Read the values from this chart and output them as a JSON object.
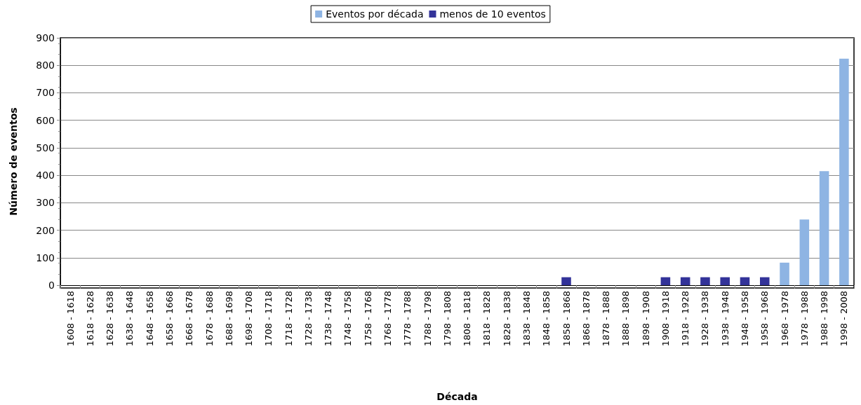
{
  "chart_data": {
    "type": "bar",
    "xlabel": "Década",
    "ylabel": "Número de eventos",
    "categories": [
      "1608 - 1618",
      "1618 - 1628",
      "1628 - 1638",
      "1638 - 1648",
      "1648 - 1658",
      "1658 - 1668",
      "1668 - 1678",
      "1678 - 1688",
      "1688 - 1698",
      "1698 - 1708",
      "1708 - 1718",
      "1718 - 1728",
      "1728 - 1738",
      "1738 - 1748",
      "1748 - 1758",
      "1758 - 1768",
      "1768 - 1778",
      "1778 - 1788",
      "1788 - 1798",
      "1798 - 1808",
      "1808 - 1818",
      "1818 - 1828",
      "1828 - 1838",
      "1838 - 1848",
      "1848 - 1858",
      "1858 - 1868",
      "1868 - 1878",
      "1878 - 1888",
      "1888 - 1898",
      "1898 - 1908",
      "1908 - 1918",
      "1918 - 1928",
      "1928 - 1938",
      "1938 - 1948",
      "1948 - 1958",
      "1958 - 1968",
      "1968 - 1978",
      "1978 - 1988",
      "1988 - 1998",
      "1998 - 2008"
    ],
    "series": [
      {
        "name": "Eventos por década",
        "color": "#8eb4e3",
        "values": [
          null,
          null,
          null,
          null,
          null,
          null,
          null,
          null,
          null,
          null,
          null,
          null,
          null,
          null,
          null,
          null,
          null,
          null,
          null,
          null,
          null,
          null,
          null,
          null,
          null,
          null,
          null,
          null,
          null,
          null,
          null,
          null,
          null,
          null,
          null,
          null,
          82,
          239,
          415,
          824
        ]
      },
      {
        "name": "menos de 10 eventos",
        "color": "#333399",
        "values": [
          null,
          null,
          null,
          null,
          null,
          null,
          null,
          null,
          null,
          null,
          null,
          null,
          null,
          null,
          null,
          null,
          null,
          null,
          null,
          null,
          null,
          null,
          null,
          null,
          null,
          29,
          null,
          null,
          null,
          null,
          29,
          29,
          29,
          29,
          29,
          29,
          null,
          null,
          null,
          null
        ]
      }
    ],
    "ylim": [
      0,
      900
    ],
    "yticks": [
      0,
      100,
      200,
      300,
      400,
      500,
      600,
      700,
      800,
      900
    ],
    "grid": "y",
    "legend": "top"
  }
}
